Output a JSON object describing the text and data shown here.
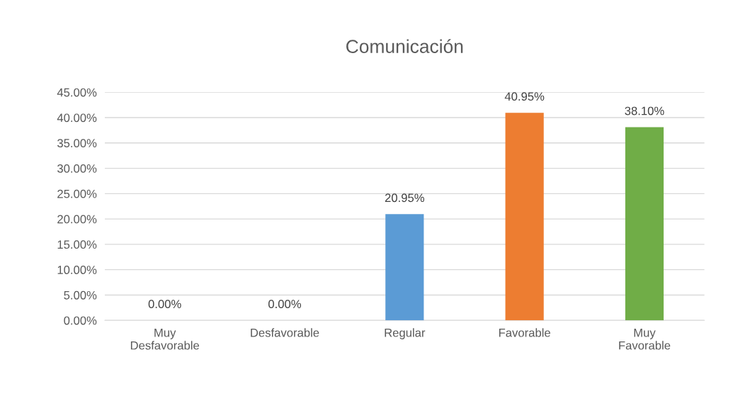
{
  "chart_data": {
    "type": "bar",
    "title": "Comunicación",
    "categories": [
      "Muy\nDesfavorable",
      "Desfavorable",
      "Regular",
      "Favorable",
      "Muy\nFavorable"
    ],
    "values": [
      0,
      0,
      20.95,
      40.95,
      38.1
    ],
    "colors": [
      "#5b9bd5",
      "#5b9bd5",
      "#5b9bd5",
      "#ed7d31",
      "#70ad47"
    ],
    "value_labels": [
      "0.00%",
      "0.00%",
      "20.95%",
      "40.95%",
      "38.10%"
    ],
    "ylim": [
      0,
      45
    ],
    "yticks": [
      {
        "value": 0,
        "label": "0.00%"
      },
      {
        "value": 5,
        "label": "5.00%"
      },
      {
        "value": 10,
        "label": "10.00%"
      },
      {
        "value": 15,
        "label": "15.00%"
      },
      {
        "value": 20,
        "label": "20.00%"
      },
      {
        "value": 25,
        "label": "25.00%"
      },
      {
        "value": 30,
        "label": "30.00%"
      },
      {
        "value": 35,
        "label": "35.00%"
      },
      {
        "value": 40,
        "label": "40.00%"
      },
      {
        "value": 45,
        "label": "45.00%"
      }
    ],
    "grid": "y",
    "legend": false
  }
}
